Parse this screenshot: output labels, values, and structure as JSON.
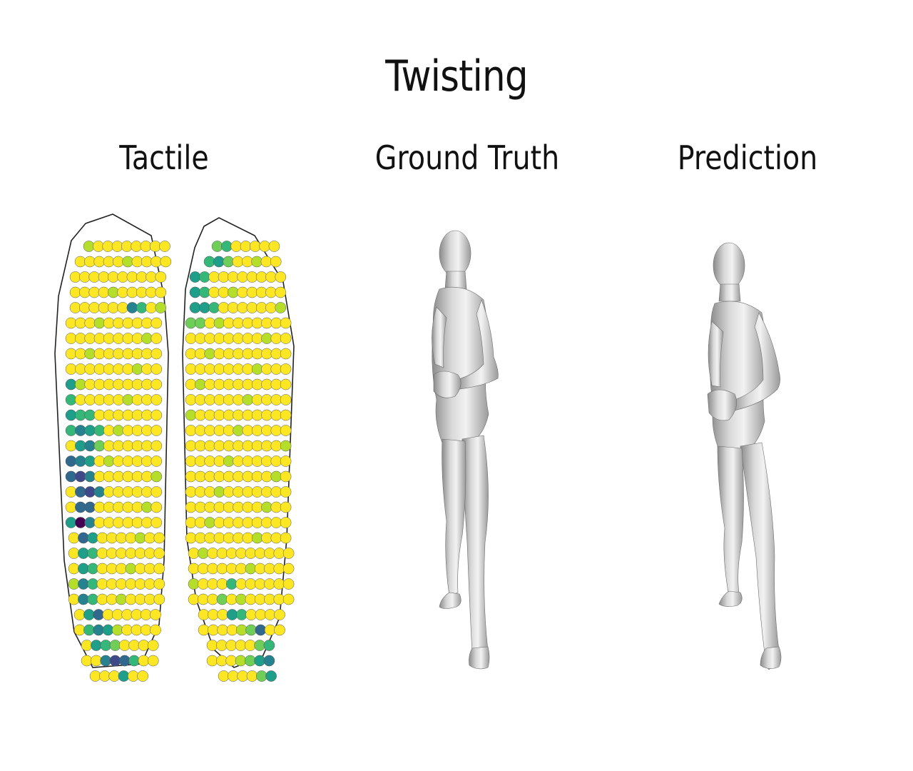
{
  "figure": {
    "title": "Twisting",
    "panels": [
      {
        "id": "tactile",
        "label": "Tactile"
      },
      {
        "id": "ground-truth",
        "label": "Ground Truth"
      },
      {
        "id": "prediction",
        "label": "Prediction"
      }
    ]
  },
  "tactile": {
    "colormap": [
      "#fde725",
      "#b5de2b",
      "#6ece58",
      "#35b779",
      "#1f9e89",
      "#26828e",
      "#31688e",
      "#3e4989",
      "#482878",
      "#440154"
    ],
    "left_hotspots": [
      {
        "r": 4,
        "c": 6,
        "v": 5
      },
      {
        "r": 4,
        "c": 7,
        "v": 3
      },
      {
        "r": 9,
        "c": 0,
        "v": 4
      },
      {
        "r": 10,
        "c": 0,
        "v": 3
      },
      {
        "r": 11,
        "c": 0,
        "v": 4
      },
      {
        "r": 11,
        "c": 1,
        "v": 3
      },
      {
        "r": 11,
        "c": 2,
        "v": 3
      },
      {
        "r": 12,
        "c": 0,
        "v": 3
      },
      {
        "r": 12,
        "c": 1,
        "v": 5
      },
      {
        "r": 12,
        "c": 2,
        "v": 4
      },
      {
        "r": 12,
        "c": 3,
        "v": 3
      },
      {
        "r": 13,
        "c": 1,
        "v": 4
      },
      {
        "r": 13,
        "c": 2,
        "v": 5
      },
      {
        "r": 13,
        "c": 3,
        "v": 2
      },
      {
        "r": 14,
        "c": 0,
        "v": 6
      },
      {
        "r": 14,
        "c": 1,
        "v": 5
      },
      {
        "r": 14,
        "c": 2,
        "v": 4
      },
      {
        "r": 15,
        "c": 0,
        "v": 6
      },
      {
        "r": 15,
        "c": 1,
        "v": 7
      },
      {
        "r": 15,
        "c": 2,
        "v": 5
      },
      {
        "r": 16,
        "c": 1,
        "v": 6
      },
      {
        "r": 16,
        "c": 2,
        "v": 7
      },
      {
        "r": 16,
        "c": 3,
        "v": 5
      },
      {
        "r": 17,
        "c": 1,
        "v": 6
      },
      {
        "r": 17,
        "c": 2,
        "v": 6
      },
      {
        "r": 18,
        "c": 0,
        "v": 4
      },
      {
        "r": 18,
        "c": 1,
        "v": 9
      },
      {
        "r": 18,
        "c": 2,
        "v": 5
      },
      {
        "r": 19,
        "c": 1,
        "v": 6
      },
      {
        "r": 19,
        "c": 2,
        "v": 4
      },
      {
        "r": 20,
        "c": 1,
        "v": 4
      },
      {
        "r": 20,
        "c": 2,
        "v": 3
      },
      {
        "r": 21,
        "c": 1,
        "v": 4
      },
      {
        "r": 21,
        "c": 2,
        "v": 3
      },
      {
        "r": 22,
        "c": 1,
        "v": 5
      },
      {
        "r": 22,
        "c": 2,
        "v": 3
      },
      {
        "r": 23,
        "c": 1,
        "v": 5
      },
      {
        "r": 23,
        "c": 2,
        "v": 3
      },
      {
        "r": 24,
        "c": 1,
        "v": 4
      },
      {
        "r": 24,
        "c": 2,
        "v": 6
      },
      {
        "r": 25,
        "c": 1,
        "v": 3
      },
      {
        "r": 25,
        "c": 2,
        "v": 5
      },
      {
        "r": 25,
        "c": 3,
        "v": 4
      },
      {
        "r": 26,
        "c": 1,
        "v": 4
      },
      {
        "r": 26,
        "c": 2,
        "v": 3
      },
      {
        "r": 26,
        "c": 3,
        "v": 2
      },
      {
        "r": 27,
        "c": 2,
        "v": 5
      },
      {
        "r": 27,
        "c": 3,
        "v": 7
      },
      {
        "r": 27,
        "c": 4,
        "v": 6
      },
      {
        "r": 27,
        "c": 5,
        "v": 3
      },
      {
        "r": 28,
        "c": 3,
        "v": 4
      }
    ],
    "right_hotspots": [
      {
        "r": 0,
        "c": 0,
        "v": 2
      },
      {
        "r": 0,
        "c": 1,
        "v": 3
      },
      {
        "r": 1,
        "c": 0,
        "v": 3
      },
      {
        "r": 1,
        "c": 1,
        "v": 4
      },
      {
        "r": 1,
        "c": 2,
        "v": 2
      },
      {
        "r": 2,
        "c": 0,
        "v": 4
      },
      {
        "r": 2,
        "c": 1,
        "v": 3
      },
      {
        "r": 3,
        "c": 0,
        "v": 4
      },
      {
        "r": 3,
        "c": 1,
        "v": 3
      },
      {
        "r": 4,
        "c": 0,
        "v": 4
      },
      {
        "r": 4,
        "c": 1,
        "v": 4
      },
      {
        "r": 4,
        "c": 2,
        "v": 3
      },
      {
        "r": 5,
        "c": 0,
        "v": 2
      },
      {
        "r": 5,
        "c": 1,
        "v": 2
      },
      {
        "r": 22,
        "c": 4,
        "v": 3
      },
      {
        "r": 23,
        "c": 3,
        "v": 2
      },
      {
        "r": 24,
        "c": 3,
        "v": 4
      },
      {
        "r": 24,
        "c": 4,
        "v": 3
      },
      {
        "r": 25,
        "c": 6,
        "v": 6
      },
      {
        "r": 25,
        "c": 5,
        "v": 2
      },
      {
        "r": 26,
        "c": 6,
        "v": 3
      },
      {
        "r": 26,
        "c": 5,
        "v": 2
      },
      {
        "r": 27,
        "c": 5,
        "v": 4
      },
      {
        "r": 27,
        "c": 6,
        "v": 5
      },
      {
        "r": 27,
        "c": 4,
        "v": 2
      },
      {
        "r": 28,
        "c": 5,
        "v": 4
      },
      {
        "r": 28,
        "c": 6,
        "v": 6
      },
      {
        "r": 28,
        "c": 4,
        "v": 2
      }
    ]
  },
  "mesh": {
    "color_light": "#e6e6e6",
    "color_mid": "#b8b8b8",
    "color_dark": "#7e7e7e"
  }
}
